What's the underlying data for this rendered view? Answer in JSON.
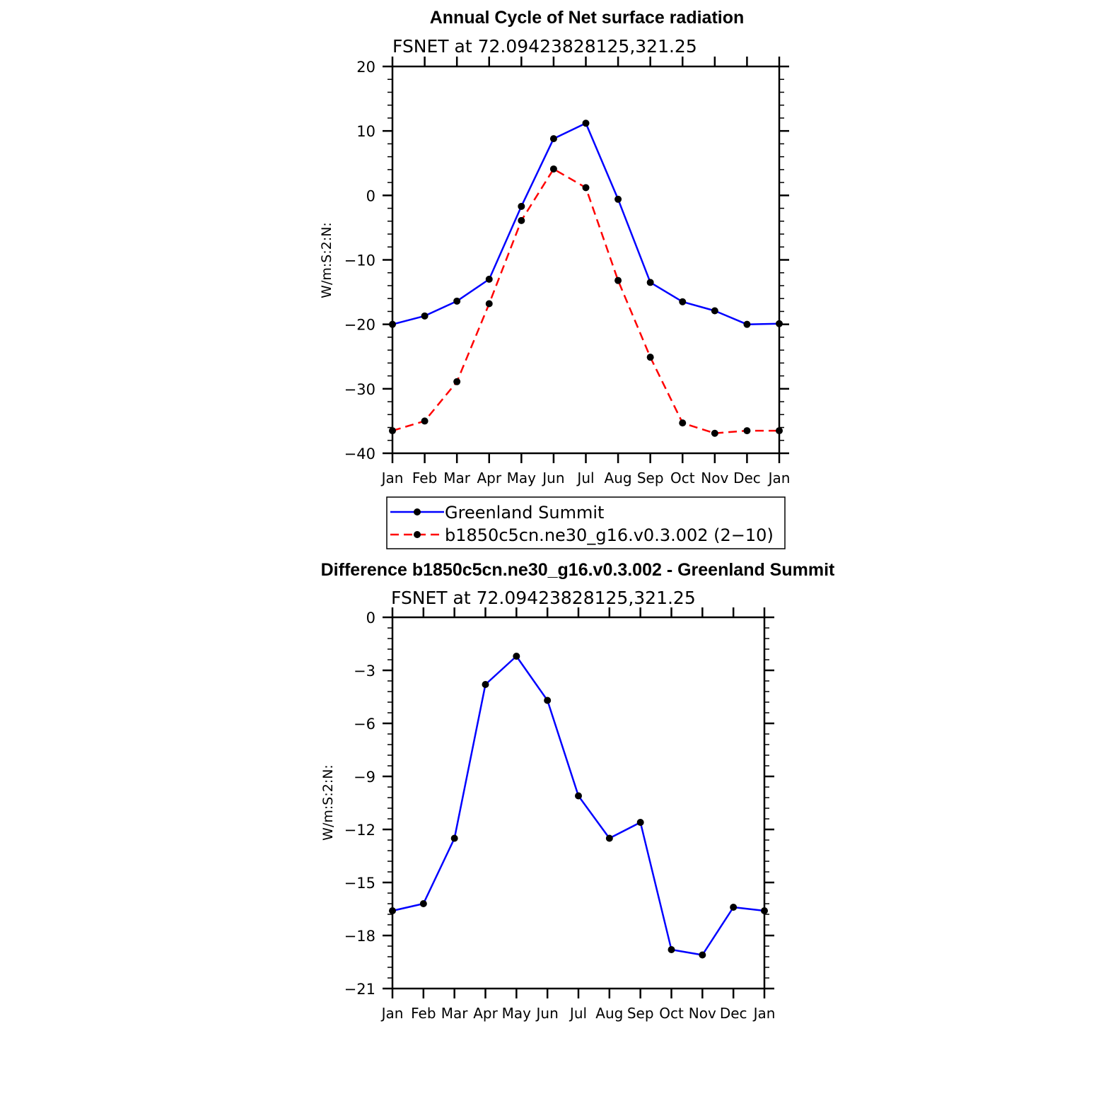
{
  "chart_data": [
    {
      "type": "line",
      "title": "Annual Cycle of Net surface radiation",
      "subtitle": "FSNET at 72.09423828125,321.25",
      "xlabel": "",
      "ylabel": "W/m:S:2:N:",
      "categories": [
        "Jan",
        "Feb",
        "Mar",
        "Apr",
        "May",
        "Jun",
        "Jul",
        "Aug",
        "Sep",
        "Oct",
        "Nov",
        "Dec",
        "Jan"
      ],
      "ylim": [
        -40,
        20
      ],
      "yticks": [
        -40,
        -30,
        -20,
        -10,
        0,
        10,
        20
      ],
      "ytick_labels": [
        "−40",
        "−30",
        "−20",
        "−10",
        "0",
        "10",
        "20"
      ],
      "series": [
        {
          "name": "Greenland Summit",
          "color": "#0000ff",
          "dash": "solid",
          "values": [
            -20.0,
            -18.7,
            -16.4,
            -13.0,
            -1.7,
            8.8,
            11.2,
            -0.6,
            -13.5,
            -16.5,
            -17.9,
            -20.0,
            -19.9
          ]
        },
        {
          "name": "b1850c5cn.ne30_g16.v0.3.002 (2−10)",
          "color": "#ff0000",
          "dash": "dashed",
          "values": [
            -36.5,
            -35.0,
            -28.9,
            -16.8,
            -3.9,
            4.1,
            1.2,
            -13.2,
            -25.1,
            -35.3,
            -36.9,
            -36.5,
            -36.5
          ]
        }
      ],
      "legend": [
        "Greenland Summit",
        "b1850c5cn.ne30_g16.v0.3.002 (2−10)"
      ]
    },
    {
      "type": "line",
      "title": "Difference b1850c5cn.ne30_g16.v0.3.002 - Greenland Summit",
      "subtitle": "FSNET at 72.09423828125,321.25",
      "xlabel": "",
      "ylabel": "W/m:S:2:N:",
      "categories": [
        "Jan",
        "Feb",
        "Mar",
        "Apr",
        "May",
        "Jun",
        "Jul",
        "Aug",
        "Sep",
        "Oct",
        "Nov",
        "Dec",
        "Jan"
      ],
      "ylim": [
        -21,
        0
      ],
      "yticks": [
        -21,
        -18,
        -15,
        -12,
        -9,
        -6,
        -3,
        0
      ],
      "ytick_labels": [
        "−21",
        "−18",
        "−15",
        "−12",
        "−9",
        "−6",
        "−3",
        "0"
      ],
      "series": [
        {
          "name": "Difference",
          "color": "#0000ff",
          "dash": "solid",
          "values": [
            -16.6,
            -16.2,
            -12.5,
            -3.8,
            -2.2,
            -4.7,
            -10.1,
            -12.5,
            -11.6,
            -18.8,
            -19.1,
            -16.4,
            -16.6
          ]
        }
      ]
    }
  ]
}
